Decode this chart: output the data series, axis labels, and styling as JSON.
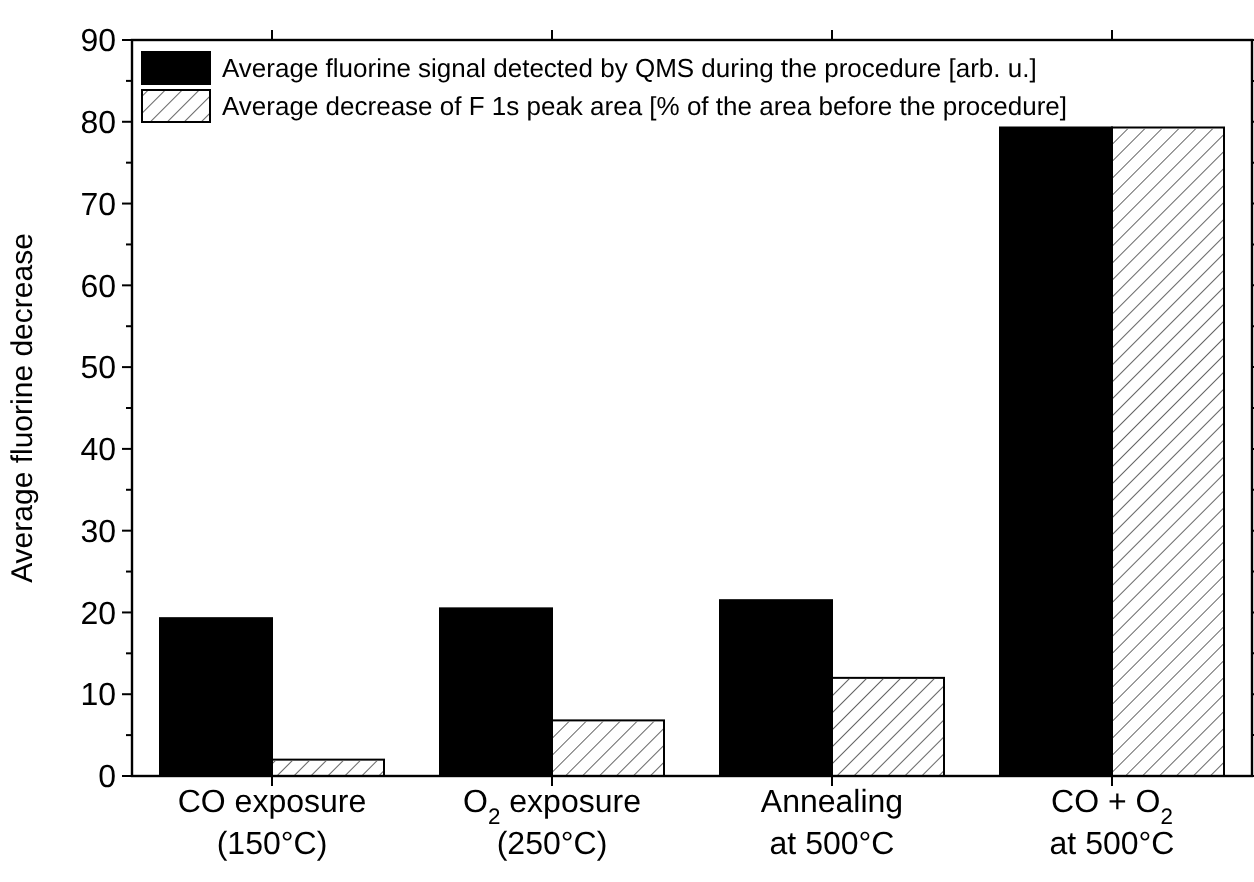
{
  "chart_data": {
    "type": "bar",
    "ylabel": "Average fluorine decrease",
    "categories": [
      "CO exposure\n(150°C)",
      "O$_{2}$ exposure\n(250°C)",
      "Annealing\nat 500°C",
      "CO + O$_{2}$\nat 500°C"
    ],
    "series": [
      {
        "name": "Average fluorine signal detected by QMS during the procedure [arb. u.]",
        "color": "#000000",
        "values": [
          19.3,
          20.5,
          21.5,
          79.3
        ]
      },
      {
        "name": "Average decrease of F 1s peak area [% of the area before the procedure]",
        "color": "#ffffff",
        "values": [
          2.0,
          6.8,
          12.0,
          79.3
        ]
      }
    ],
    "ylim": [
      0,
      90
    ],
    "yticks": [
      0,
      {
        "value": 5,
        "label": null
      },
      10,
      {
        "value": 15,
        "label": null
      },
      20,
      {
        "value": 25,
        "label": null
      },
      30,
      {
        "value": 35,
        "label": null
      },
      40,
      {
        "value": 45,
        "label": null
      },
      50,
      {
        "value": 55,
        "label": null
      },
      60,
      {
        "value": 65,
        "label": null
      },
      70,
      {
        "value": 75,
        "label": null
      },
      80,
      {
        "value": 85,
        "label": null
      },
      90
    ],
    "legend": "top left",
    "grid": false
  }
}
